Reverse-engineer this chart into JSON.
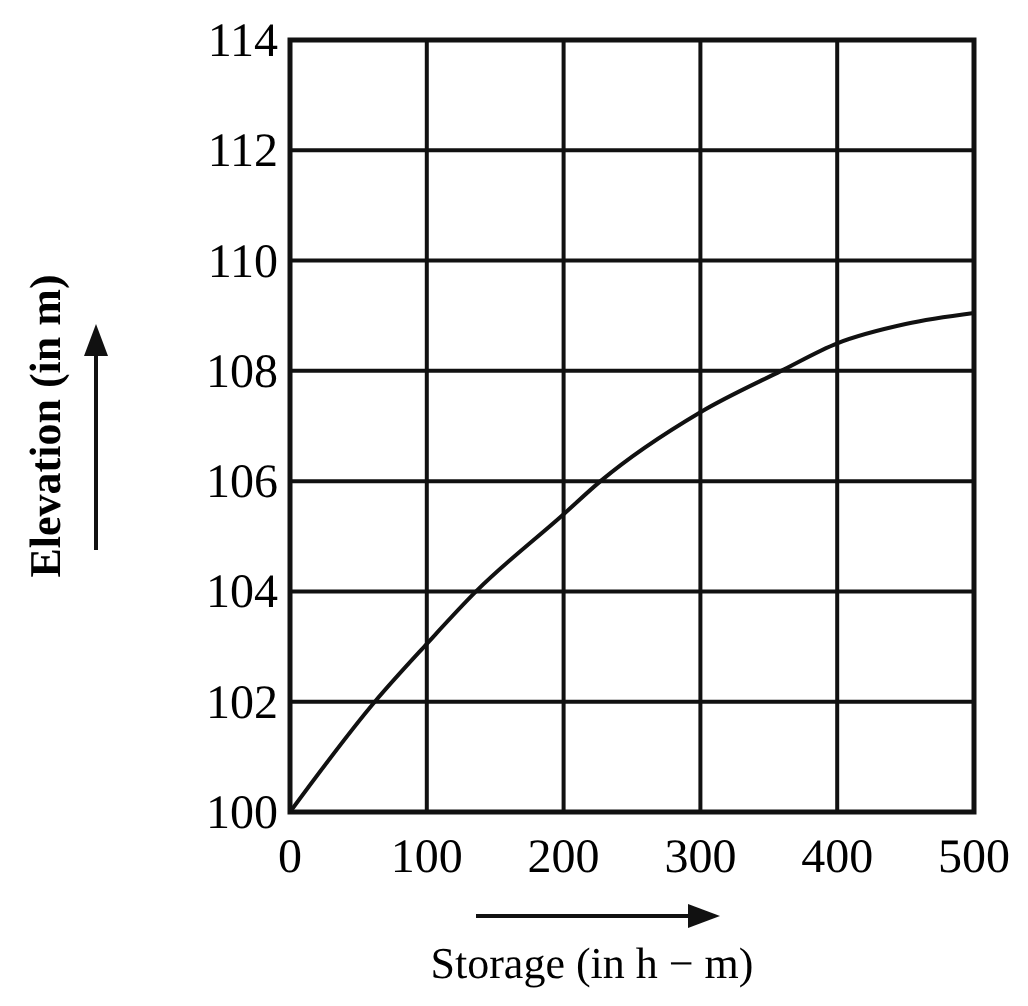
{
  "chart_data": {
    "type": "line",
    "xlabel": "Storage (in h − m)",
    "ylabel": "Elevation (in m)",
    "x": [
      0,
      62,
      100,
      136,
      200,
      227,
      300,
      359,
      400,
      450,
      500
    ],
    "series": [
      {
        "color": "#111111",
        "values": [
          100,
          102,
          103.05,
          104,
          105.4,
          106,
          107.25,
          108,
          108.5,
          108.85,
          109.05
        ]
      }
    ],
    "xlim": [
      0,
      500
    ],
    "xticks": [
      0,
      100,
      200,
      300,
      400,
      500
    ],
    "ylim": [
      100,
      114
    ],
    "yticks": [
      100,
      102,
      104,
      106,
      108,
      110,
      112,
      114
    ],
    "grid": true,
    "marker": "none",
    "line_style": "solid"
  }
}
